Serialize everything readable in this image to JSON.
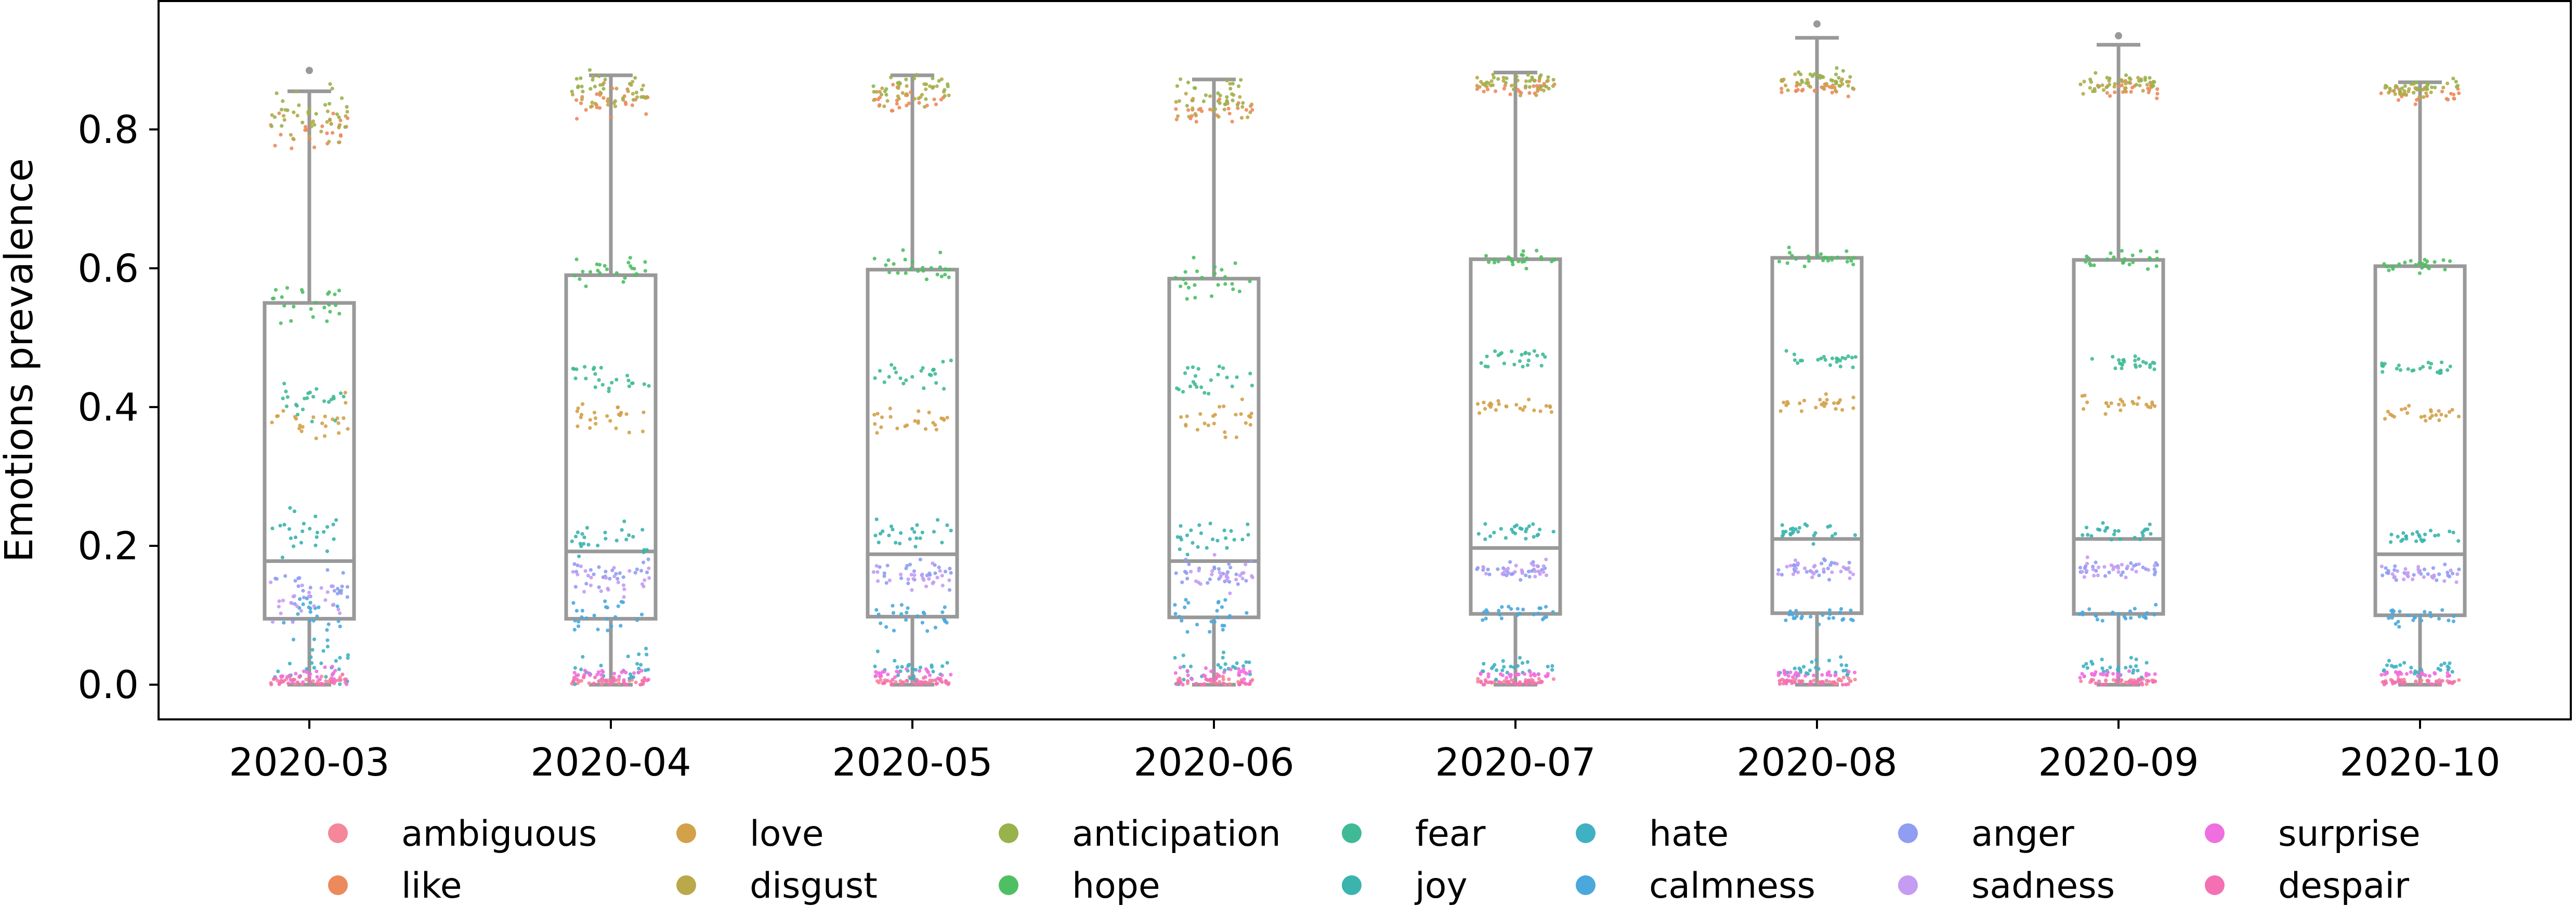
{
  "chart_data": {
    "type": "box-strip",
    "title": "",
    "xlabel": "",
    "ylabel": "Emotions prevalence",
    "ylim": [
      -0.05,
      0.985
    ],
    "yticks": [
      0.0,
      0.2,
      0.4,
      0.6,
      0.8
    ],
    "ytick_labels": [
      "0.0",
      "0.2",
      "0.4",
      "0.6",
      "0.8"
    ],
    "categories": [
      "2020-03",
      "2020-04",
      "2020-05",
      "2020-06",
      "2020-07",
      "2020-08",
      "2020-09",
      "2020-10"
    ],
    "box_color": "#999999",
    "boxes": [
      {
        "category": "2020-03",
        "whislo": 0.0,
        "q1": 0.095,
        "median": 0.178,
        "q3": 0.55,
        "whishi": 0.855,
        "fliers": [
          0.885
        ]
      },
      {
        "category": "2020-04",
        "whislo": 0.0,
        "q1": 0.095,
        "median": 0.192,
        "q3": 0.59,
        "whishi": 0.878,
        "fliers": []
      },
      {
        "category": "2020-05",
        "whislo": 0.0,
        "q1": 0.098,
        "median": 0.188,
        "q3": 0.598,
        "whishi": 0.878,
        "fliers": []
      },
      {
        "category": "2020-06",
        "whislo": 0.0,
        "q1": 0.097,
        "median": 0.178,
        "q3": 0.585,
        "whishi": 0.872,
        "fliers": []
      },
      {
        "category": "2020-07",
        "whislo": 0.0,
        "q1": 0.102,
        "median": 0.197,
        "q3": 0.613,
        "whishi": 0.882,
        "fliers": []
      },
      {
        "category": "2020-08",
        "whislo": 0.0,
        "q1": 0.103,
        "median": 0.21,
        "q3": 0.615,
        "whishi": 0.932,
        "fliers": [
          0.952
        ]
      },
      {
        "category": "2020-09",
        "whislo": 0.0,
        "q1": 0.102,
        "median": 0.21,
        "q3": 0.612,
        "whishi": 0.922,
        "fliers": [
          0.935
        ]
      },
      {
        "category": "2020-10",
        "whislo": 0.0,
        "q1": 0.1,
        "median": 0.188,
        "q3": 0.603,
        "whishi": 0.868,
        "fliers": []
      }
    ],
    "series": [
      {
        "name": "ambiguous",
        "color": "#f5879a",
        "values": [
          0.005,
          0.005,
          0.005,
          0.005,
          0.005,
          0.005,
          0.005,
          0.005
        ]
      },
      {
        "name": "like",
        "color": "#ed8a5c",
        "values": [
          0.8,
          0.84,
          0.845,
          0.83,
          0.86,
          0.86,
          0.86,
          0.85
        ]
      },
      {
        "name": "love",
        "color": "#d3a149",
        "values": [
          0.38,
          0.385,
          0.385,
          0.38,
          0.4,
          0.405,
          0.405,
          0.39
        ]
      },
      {
        "name": "disgust",
        "color": "#b9a94a",
        "values": [
          0.81,
          0.85,
          0.855,
          0.84,
          0.865,
          0.865,
          0.865,
          0.855
        ]
      },
      {
        "name": "anticipation",
        "color": "#98b24c",
        "values": [
          0.83,
          0.86,
          0.865,
          0.85,
          0.87,
          0.875,
          0.87,
          0.86
        ]
      },
      {
        "name": "hope",
        "color": "#4fbf63",
        "values": [
          0.55,
          0.595,
          0.6,
          0.585,
          0.613,
          0.615,
          0.612,
          0.603
        ]
      },
      {
        "name": "fear",
        "color": "#3fba97",
        "values": [
          0.41,
          0.44,
          0.45,
          0.44,
          0.47,
          0.47,
          0.465,
          0.455
        ]
      },
      {
        "name": "joy",
        "color": "#3ab4ad",
        "values": [
          0.22,
          0.21,
          0.215,
          0.21,
          0.22,
          0.22,
          0.22,
          0.215
        ]
      },
      {
        "name": "hate",
        "color": "#3fb1c3",
        "values": [
          0.025,
          0.025,
          0.025,
          0.025,
          0.025,
          0.025,
          0.025,
          0.025
        ]
      },
      {
        "name": "calmness",
        "color": "#4aa8dd",
        "values": [
          0.1,
          0.1,
          0.1,
          0.1,
          0.1,
          0.1,
          0.1,
          0.1
        ]
      },
      {
        "name": "anger",
        "color": "#8f9df2",
        "values": [
          0.14,
          0.16,
          0.16,
          0.16,
          0.165,
          0.165,
          0.165,
          0.16
        ]
      },
      {
        "name": "sadness",
        "color": "#c49cf2",
        "values": [
          0.12,
          0.155,
          0.158,
          0.155,
          0.165,
          0.165,
          0.165,
          0.16
        ]
      },
      {
        "name": "surprise",
        "color": "#ef6fe0",
        "values": [
          0.015,
          0.015,
          0.015,
          0.015,
          0.015,
          0.015,
          0.015,
          0.015
        ]
      },
      {
        "name": "despair",
        "color": "#f470b3",
        "values": [
          0.003,
          0.003,
          0.003,
          0.003,
          0.003,
          0.003,
          0.003,
          0.003
        ]
      }
    ],
    "legend": {
      "position": "bottom",
      "columns": 7,
      "items": [
        "ambiguous",
        "like",
        "love",
        "disgust",
        "anticipation",
        "hope",
        "fear",
        "joy",
        "hate",
        "calmness",
        "anger",
        "sadness",
        "surprise",
        "despair"
      ]
    }
  }
}
